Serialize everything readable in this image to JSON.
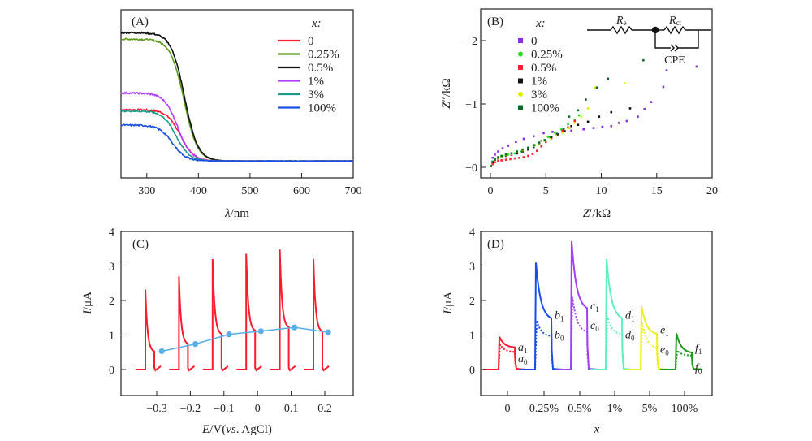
{
  "chart_data": [
    {
      "panel": "(A)",
      "type": "line",
      "title": "",
      "xlabel": "λ/nm",
      "ylabel": "",
      "xlim": [
        250,
        700
      ],
      "ylim": [
        0,
        1.0
      ],
      "xticks": [
        300,
        400,
        500,
        600,
        700
      ],
      "yticks": [],
      "grid": false,
      "legend_title": "x:",
      "legend_position": "top-right",
      "series": [
        {
          "name": "0",
          "color": "#ff1a2e",
          "plateau": 0.43,
          "edge": 365,
          "baseline": 0.03
        },
        {
          "name": "0.25%",
          "color": "#5a9a17",
          "plateau": 0.98,
          "edge": 372,
          "baseline": 0.03
        },
        {
          "name": "0.5%",
          "color": "#111111",
          "plateau": 1.03,
          "edge": 373,
          "baseline": 0.03
        },
        {
          "name": "1%",
          "color": "#b040ff",
          "plateau": 0.56,
          "edge": 360,
          "baseline": 0.03
        },
        {
          "name": "3%",
          "color": "#1a9a8a",
          "plateau": 0.42,
          "edge": 357,
          "baseline": 0.03
        },
        {
          "name": "100%",
          "color": "#1a4fe6",
          "plateau": 0.31,
          "edge": 350,
          "baseline": 0.03
        }
      ]
    },
    {
      "panel": "(B)",
      "type": "scatter",
      "title": "",
      "xlabel": "Z′/kΩ",
      "ylabel": "Z″/kΩ",
      "xlim": [
        -0.6,
        20
      ],
      "ylim": [
        0.15,
        -2.5
      ],
      "xticks": [
        0,
        5,
        10,
        15,
        20
      ],
      "yticks": [
        -2,
        -1,
        0
      ],
      "ytick_labels": [
        "−2",
        "−1",
        "−0"
      ],
      "grid": false,
      "legend_title": "x:",
      "legend_position": "top-left",
      "inset_circuit": {
        "labels": [
          "Re",
          "Rct",
          "CPE"
        ]
      },
      "series": [
        {
          "name": "0",
          "color": "#8a2be2",
          "marker": "square",
          "x": [
            0.05,
            0.2,
            0.4,
            0.7,
            1.1,
            1.6,
            2.3,
            3.0,
            3.9,
            4.8,
            5.6,
            6.5,
            7.3,
            8.4,
            9.3,
            10.1,
            10.9,
            11.6,
            12.3,
            13.3,
            13.9,
            14.5,
            15.6,
            15.9,
            18.6
          ],
          "y": [
            -0.02,
            -0.15,
            -0.2,
            -0.25,
            -0.3,
            -0.34,
            -0.4,
            -0.45,
            -0.49,
            -0.54,
            -0.56,
            -0.57,
            -0.58,
            -0.6,
            -0.62,
            -0.64,
            -0.65,
            -0.7,
            -0.73,
            -0.8,
            -0.92,
            -1.03,
            -1.27,
            -1.53,
            -1.59
          ]
        },
        {
          "name": "0.25%",
          "color": "#22dd22",
          "marker": "circle",
          "x": [
            0.05,
            0.2,
            0.4,
            0.7,
            1.1,
            1.6,
            2.2,
            2.8,
            3.4,
            4.0,
            4.6,
            5.2,
            5.8,
            6.4,
            7.0,
            7.6,
            8.0
          ],
          "y": [
            -0.02,
            -0.08,
            -0.12,
            -0.15,
            -0.18,
            -0.2,
            -0.22,
            -0.25,
            -0.3,
            -0.35,
            -0.42,
            -0.48,
            -0.55,
            -0.6,
            -0.68,
            -0.75,
            -0.82
          ]
        },
        {
          "name": "0.5%",
          "color": "#ff2233",
          "marker": "square",
          "x": [
            0.05,
            0.2,
            0.4,
            0.7,
            1.0,
            1.4,
            1.8,
            2.2,
            2.6,
            3.0,
            3.4,
            3.8,
            4.2,
            4.6,
            5.0,
            5.5,
            6.0,
            6.5,
            7.0,
            7.6
          ],
          "y": [
            -0.02,
            -0.05,
            -0.08,
            -0.1,
            -0.11,
            -0.12,
            -0.13,
            -0.14,
            -0.15,
            -0.16,
            -0.18,
            -0.21,
            -0.26,
            -0.33,
            -0.4,
            -0.46,
            -0.52,
            -0.58,
            -0.63,
            -0.73
          ]
        },
        {
          "name": "1%",
          "color": "#111111",
          "marker": "square",
          "x": [
            0.05,
            0.2,
            0.4,
            0.7,
            1.0,
            1.4,
            1.9,
            2.4,
            2.9,
            3.4,
            3.9,
            4.4,
            4.9,
            5.5,
            6.1,
            6.7,
            7.3,
            7.9,
            8.8,
            9.8,
            10.9,
            12.6
          ],
          "y": [
            -0.02,
            -0.08,
            -0.12,
            -0.14,
            -0.16,
            -0.18,
            -0.2,
            -0.22,
            -0.25,
            -0.28,
            -0.32,
            -0.37,
            -0.42,
            -0.48,
            -0.52,
            -0.57,
            -0.65,
            -0.67,
            -0.72,
            -0.8,
            -0.87,
            -0.93
          ]
        },
        {
          "name": "3%",
          "color": "#e0f000",
          "marker": "circle",
          "x": [
            0.05,
            0.2,
            0.4,
            0.7,
            1.0,
            1.4,
            1.9,
            2.4,
            2.9,
            3.4,
            3.9,
            4.4,
            4.9,
            5.4,
            5.9,
            6.5,
            7.1,
            7.6,
            8.2,
            8.8,
            9.4,
            12.1
          ],
          "y": [
            -0.02,
            -0.09,
            -0.13,
            -0.15,
            -0.17,
            -0.19,
            -0.21,
            -0.24,
            -0.27,
            -0.3,
            -0.34,
            -0.38,
            -0.42,
            -0.46,
            -0.5,
            -0.55,
            -0.62,
            -0.7,
            -0.8,
            -0.93,
            -1.26,
            -1.33
          ]
        },
        {
          "name": "100%",
          "color": "#0a6a2a",
          "marker": "square",
          "x": [
            0.05,
            0.2,
            0.4,
            0.7,
            1.0,
            1.4,
            1.9,
            2.4,
            2.9,
            3.4,
            3.9,
            4.4,
            4.9,
            5.4,
            6.0,
            6.6,
            7.1,
            7.9,
            8.6,
            9.6,
            10.6,
            13.8
          ],
          "y": [
            -0.02,
            -0.09,
            -0.13,
            -0.16,
            -0.18,
            -0.2,
            -0.22,
            -0.25,
            -0.28,
            -0.31,
            -0.35,
            -0.39,
            -0.43,
            -0.48,
            -0.53,
            -0.6,
            -0.8,
            -0.9,
            -1.07,
            -1.26,
            -1.4,
            -1.69
          ]
        }
      ]
    },
    {
      "panel": "(C)",
      "type": "line",
      "title": "",
      "xlabel": "E/V(vs. AgCl)",
      "ylabel": "I/μA",
      "xlim": [
        -0.405,
        0.3
      ],
      "ylim": [
        -0.75,
        4
      ],
      "xticks": [
        -0.3,
        -0.2,
        -0.1,
        0,
        0.1,
        0.2
      ],
      "xtick_labels": [
        "−0.3",
        "−0.2",
        "−0.1",
        "0",
        "0.1",
        "0.2"
      ],
      "yticks": [
        0,
        1,
        2,
        3,
        4
      ],
      "grid": false,
      "transient_color": "#ff1a2e",
      "trend_color": "#5aaee8",
      "transients": [
        {
          "E": -0.3,
          "peak": 2.32,
          "end": 0.5
        },
        {
          "E": -0.2,
          "peak": 2.7,
          "end": 0.72
        },
        {
          "E": -0.1,
          "peak": 3.2,
          "end": 1.0
        },
        {
          "E": 0.0,
          "peak": 3.35,
          "end": 1.1
        },
        {
          "E": 0.1,
          "peak": 3.48,
          "end": 1.2
        },
        {
          "E": 0.2,
          "peak": 3.2,
          "end": 1.07
        }
      ],
      "trend": {
        "x": [
          -0.285,
          -0.185,
          -0.085,
          0.01,
          0.11,
          0.21
        ],
        "y": [
          0.53,
          0.74,
          1.02,
          1.11,
          1.22,
          1.08
        ]
      }
    },
    {
      "panel": "(D)",
      "type": "line",
      "title": "",
      "xlabel": "x",
      "ylabel": "I/μA",
      "ylim": [
        -0.75,
        4
      ],
      "yticks": [
        0,
        1,
        2,
        3,
        4
      ],
      "categories": [
        "0",
        "0.25%",
        "0.5%",
        "1%",
        "5%",
        "100%"
      ],
      "grid": false,
      "series": [
        {
          "name": "0",
          "color": "#ff1a2e",
          "peak_light": 0.95,
          "end_light": 0.63,
          "peak_dark": 0.72,
          "end_dark": 0.5,
          "label_light": "a1",
          "label_dark": "a0"
        },
        {
          "name": "0.25%",
          "color": "#1a4fe6",
          "peak_light": 3.1,
          "end_light": 1.42,
          "peak_dark": 1.42,
          "end_dark": 0.95,
          "label_light": "b1",
          "label_dark": "b0"
        },
        {
          "name": "0.5%",
          "color": "#a040f0",
          "peak_light": 3.72,
          "end_light": 1.7,
          "peak_dark": 2.1,
          "end_dark": 1.05,
          "label_light": "c1",
          "label_dark": "c0"
        },
        {
          "name": "1%",
          "color": "#60f0c0",
          "peak_light": 3.2,
          "end_light": 1.42,
          "peak_dark": 1.55,
          "end_dark": 1.0,
          "label_light": "d1",
          "label_dark": "d0"
        },
        {
          "name": "5%",
          "color": "#e8f020",
          "peak_light": 1.85,
          "end_light": 1.0,
          "peak_dark": 1.35,
          "end_dark": 0.6,
          "label_light": "e1",
          "label_dark": "e0"
        },
        {
          "name": "100%",
          "color": "#1a9a1a",
          "peak_light": 1.05,
          "end_light": 0.47,
          "peak_dark": 0.55,
          "end_dark": 0.4,
          "label_light": "f1",
          "label_dark": "f0"
        }
      ]
    }
  ]
}
